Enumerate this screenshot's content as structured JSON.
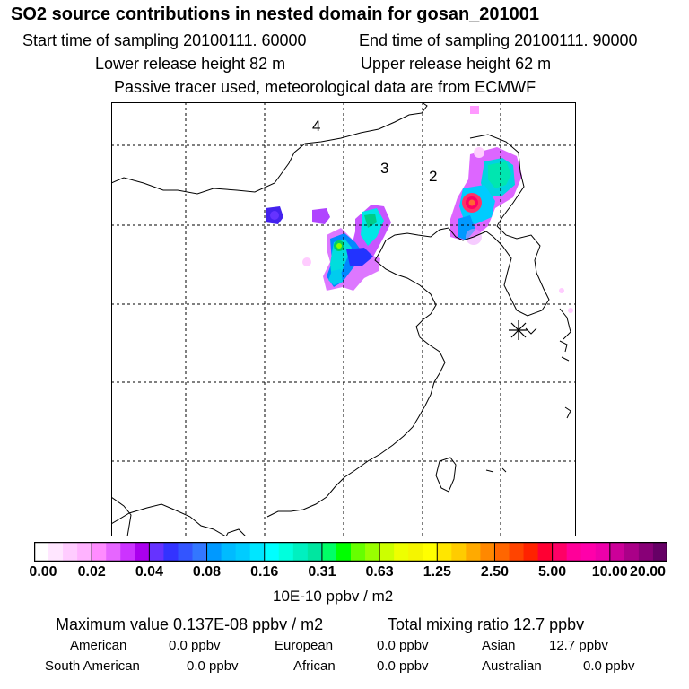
{
  "header": {
    "title": "SO2 source contributions in nested domain for gosan_201001",
    "start_time": "Start time of sampling 20100111. 60000",
    "end_time": "End time of sampling 20100111. 90000",
    "lower_height": "Lower release height   82 m",
    "upper_height": "Upper release height   62 m",
    "note": "Passive tracer used, meteorological data are from ECMWF"
  },
  "map": {
    "region_labels": [
      "4",
      "3",
      "2"
    ],
    "receptor_marker": "asterisk-icon"
  },
  "colorbar": {
    "ticks": [
      "0.00",
      "0.02",
      "0.04",
      "0.08",
      "0.16",
      "0.31",
      "0.63",
      "1.25",
      "2.50",
      "5.00",
      "10.00",
      "20.00"
    ],
    "colors": [
      "#ffffff",
      "#ffe6ff",
      "#ffccff",
      "#ffb3ff",
      "#ff8cff",
      "#e666ff",
      "#cc33ff",
      "#aa00ee",
      "#6633ff",
      "#3333ff",
      "#3355ff",
      "#3377ff",
      "#0099ff",
      "#00bbff",
      "#00ccff",
      "#00e6ff",
      "#00ffff",
      "#00ffdd",
      "#00f0c0",
      "#00e6a0",
      "#00ff66",
      "#00ff00",
      "#66ff00",
      "#99ff00",
      "#ccff00",
      "#eeff00",
      "#f5f500",
      "#ffff00",
      "#ffe600",
      "#ffcc00",
      "#ffaa00",
      "#ff8800",
      "#ff6600",
      "#ff4400",
      "#ff2200",
      "#ff0033",
      "#ff0066",
      "#ff0099",
      "#ff00aa",
      "#ee00aa",
      "#cc0099",
      "#aa0088",
      "#880077",
      "#660066"
    ],
    "unit": "10E-10 ppbv / m2"
  },
  "summary": {
    "max_value": "Maximum value  0.137E-08 ppbv / m2",
    "total_mixing": "Total mixing ratio       12.7 ppbv",
    "american_label": "American",
    "american_value": "0.0 ppbv",
    "european_label": "European",
    "european_value": "0.0 ppbv",
    "asian_label": "Asian",
    "asian_value": "12.7 ppbv",
    "south_american_label": "South American",
    "south_american_value": "0.0 ppbv",
    "african_label": "African",
    "african_value": "0.0 ppbv",
    "australian_label": "Australian",
    "australian_value": "0.0 ppbv"
  }
}
